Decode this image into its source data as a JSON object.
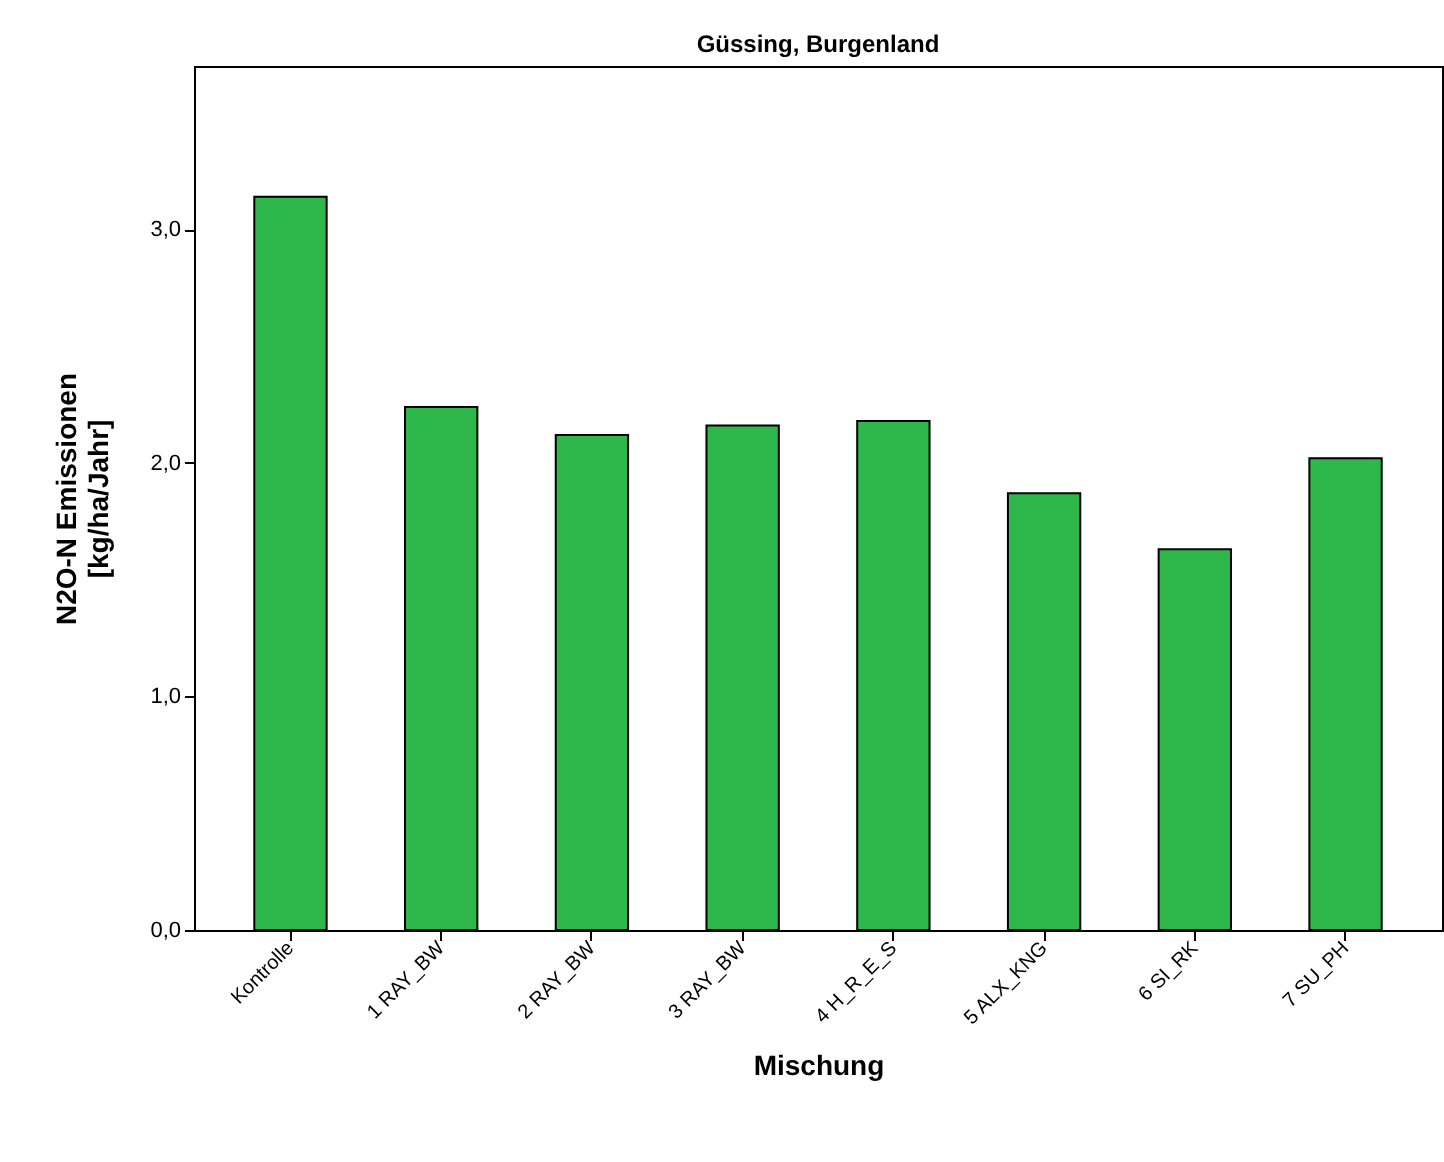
{
  "chart_data": {
    "type": "bar",
    "title": "Güssing, Burgenland",
    "xlabel": "Mischung",
    "ylabel": "N2O-N Emissionen\n[kg/ha/Jahr]",
    "categories": [
      "Kontrolle",
      "1 RAY_BW",
      "2 RAY_BW",
      "3 RAY_BW",
      "4 H_R_E_S",
      "5 ALX_KNG",
      "6 SI_RK",
      "7 SU_PH"
    ],
    "values": [
      3.14,
      2.24,
      2.12,
      2.16,
      2.18,
      1.87,
      1.63,
      2.02
    ],
    "color": "#2eb84b",
    "ylim": [
      0,
      3.7
    ],
    "yticks": [
      {
        "value": 0,
        "label": "0,0"
      },
      {
        "value": 1,
        "label": "1,0"
      },
      {
        "value": 2,
        "label": "2,0"
      },
      {
        "value": 3,
        "label": "3,0"
      }
    ],
    "grid": false
  }
}
